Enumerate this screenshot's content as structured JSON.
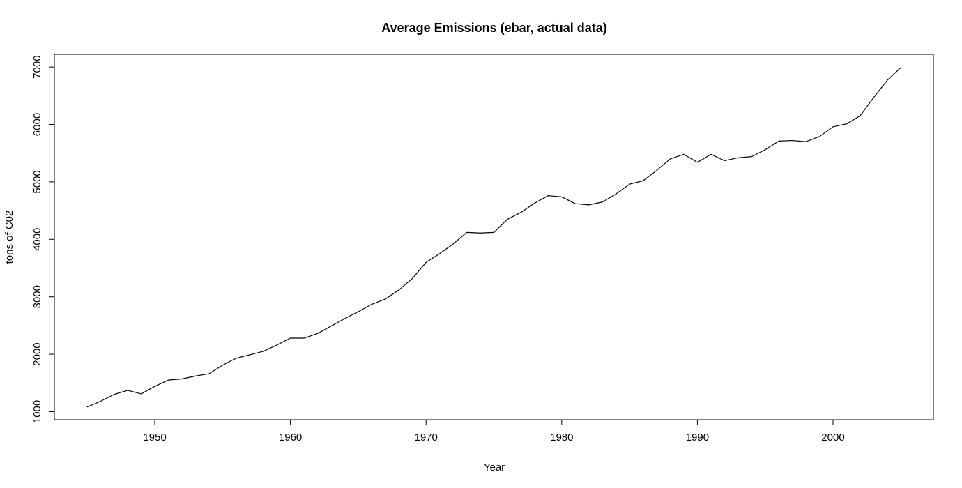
{
  "chart_data": {
    "type": "line",
    "title": "Average Emissions (ebar, actual data)",
    "xlabel": "Year",
    "ylabel": "tons of C02",
    "xlim": [
      1942.6,
      2007.4
    ],
    "ylim": [
      860,
      7220
    ],
    "grid": false,
    "x_ticks": [
      1950,
      1960,
      1970,
      1980,
      1990,
      2000
    ],
    "y_ticks": [
      1000,
      2000,
      3000,
      4000,
      5000,
      6000,
      7000
    ],
    "series": [
      {
        "color": "#000000",
        "points": [
          [
            1945,
            1080
          ],
          [
            1946,
            1180
          ],
          [
            1947,
            1300
          ],
          [
            1948,
            1370
          ],
          [
            1949,
            1310
          ],
          [
            1950,
            1440
          ],
          [
            1951,
            1550
          ],
          [
            1952,
            1570
          ],
          [
            1953,
            1620
          ],
          [
            1954,
            1660
          ],
          [
            1955,
            1810
          ],
          [
            1956,
            1930
          ],
          [
            1957,
            1990
          ],
          [
            1958,
            2050
          ],
          [
            1959,
            2160
          ],
          [
            1960,
            2280
          ],
          [
            1961,
            2280
          ],
          [
            1962,
            2360
          ],
          [
            1963,
            2490
          ],
          [
            1964,
            2620
          ],
          [
            1965,
            2740
          ],
          [
            1966,
            2870
          ],
          [
            1967,
            2960
          ],
          [
            1968,
            3120
          ],
          [
            1969,
            3320
          ],
          [
            1970,
            3600
          ],
          [
            1971,
            3750
          ],
          [
            1972,
            3920
          ],
          [
            1973,
            4120
          ],
          [
            1974,
            4110
          ],
          [
            1975,
            4120
          ],
          [
            1976,
            4350
          ],
          [
            1977,
            4470
          ],
          [
            1978,
            4630
          ],
          [
            1979,
            4760
          ],
          [
            1980,
            4740
          ],
          [
            1981,
            4620
          ],
          [
            1982,
            4600
          ],
          [
            1983,
            4650
          ],
          [
            1984,
            4790
          ],
          [
            1985,
            4960
          ],
          [
            1986,
            5020
          ],
          [
            1987,
            5200
          ],
          [
            1988,
            5400
          ],
          [
            1989,
            5480
          ],
          [
            1990,
            5340
          ],
          [
            1991,
            5480
          ],
          [
            1992,
            5370
          ],
          [
            1993,
            5420
          ],
          [
            1994,
            5440
          ],
          [
            1995,
            5560
          ],
          [
            1996,
            5710
          ],
          [
            1997,
            5720
          ],
          [
            1998,
            5700
          ],
          [
            1999,
            5790
          ],
          [
            2000,
            5960
          ],
          [
            2001,
            6010
          ],
          [
            2002,
            6150
          ],
          [
            2003,
            6470
          ],
          [
            2004,
            6770
          ],
          [
            2005,
            6990
          ]
        ]
      }
    ]
  }
}
